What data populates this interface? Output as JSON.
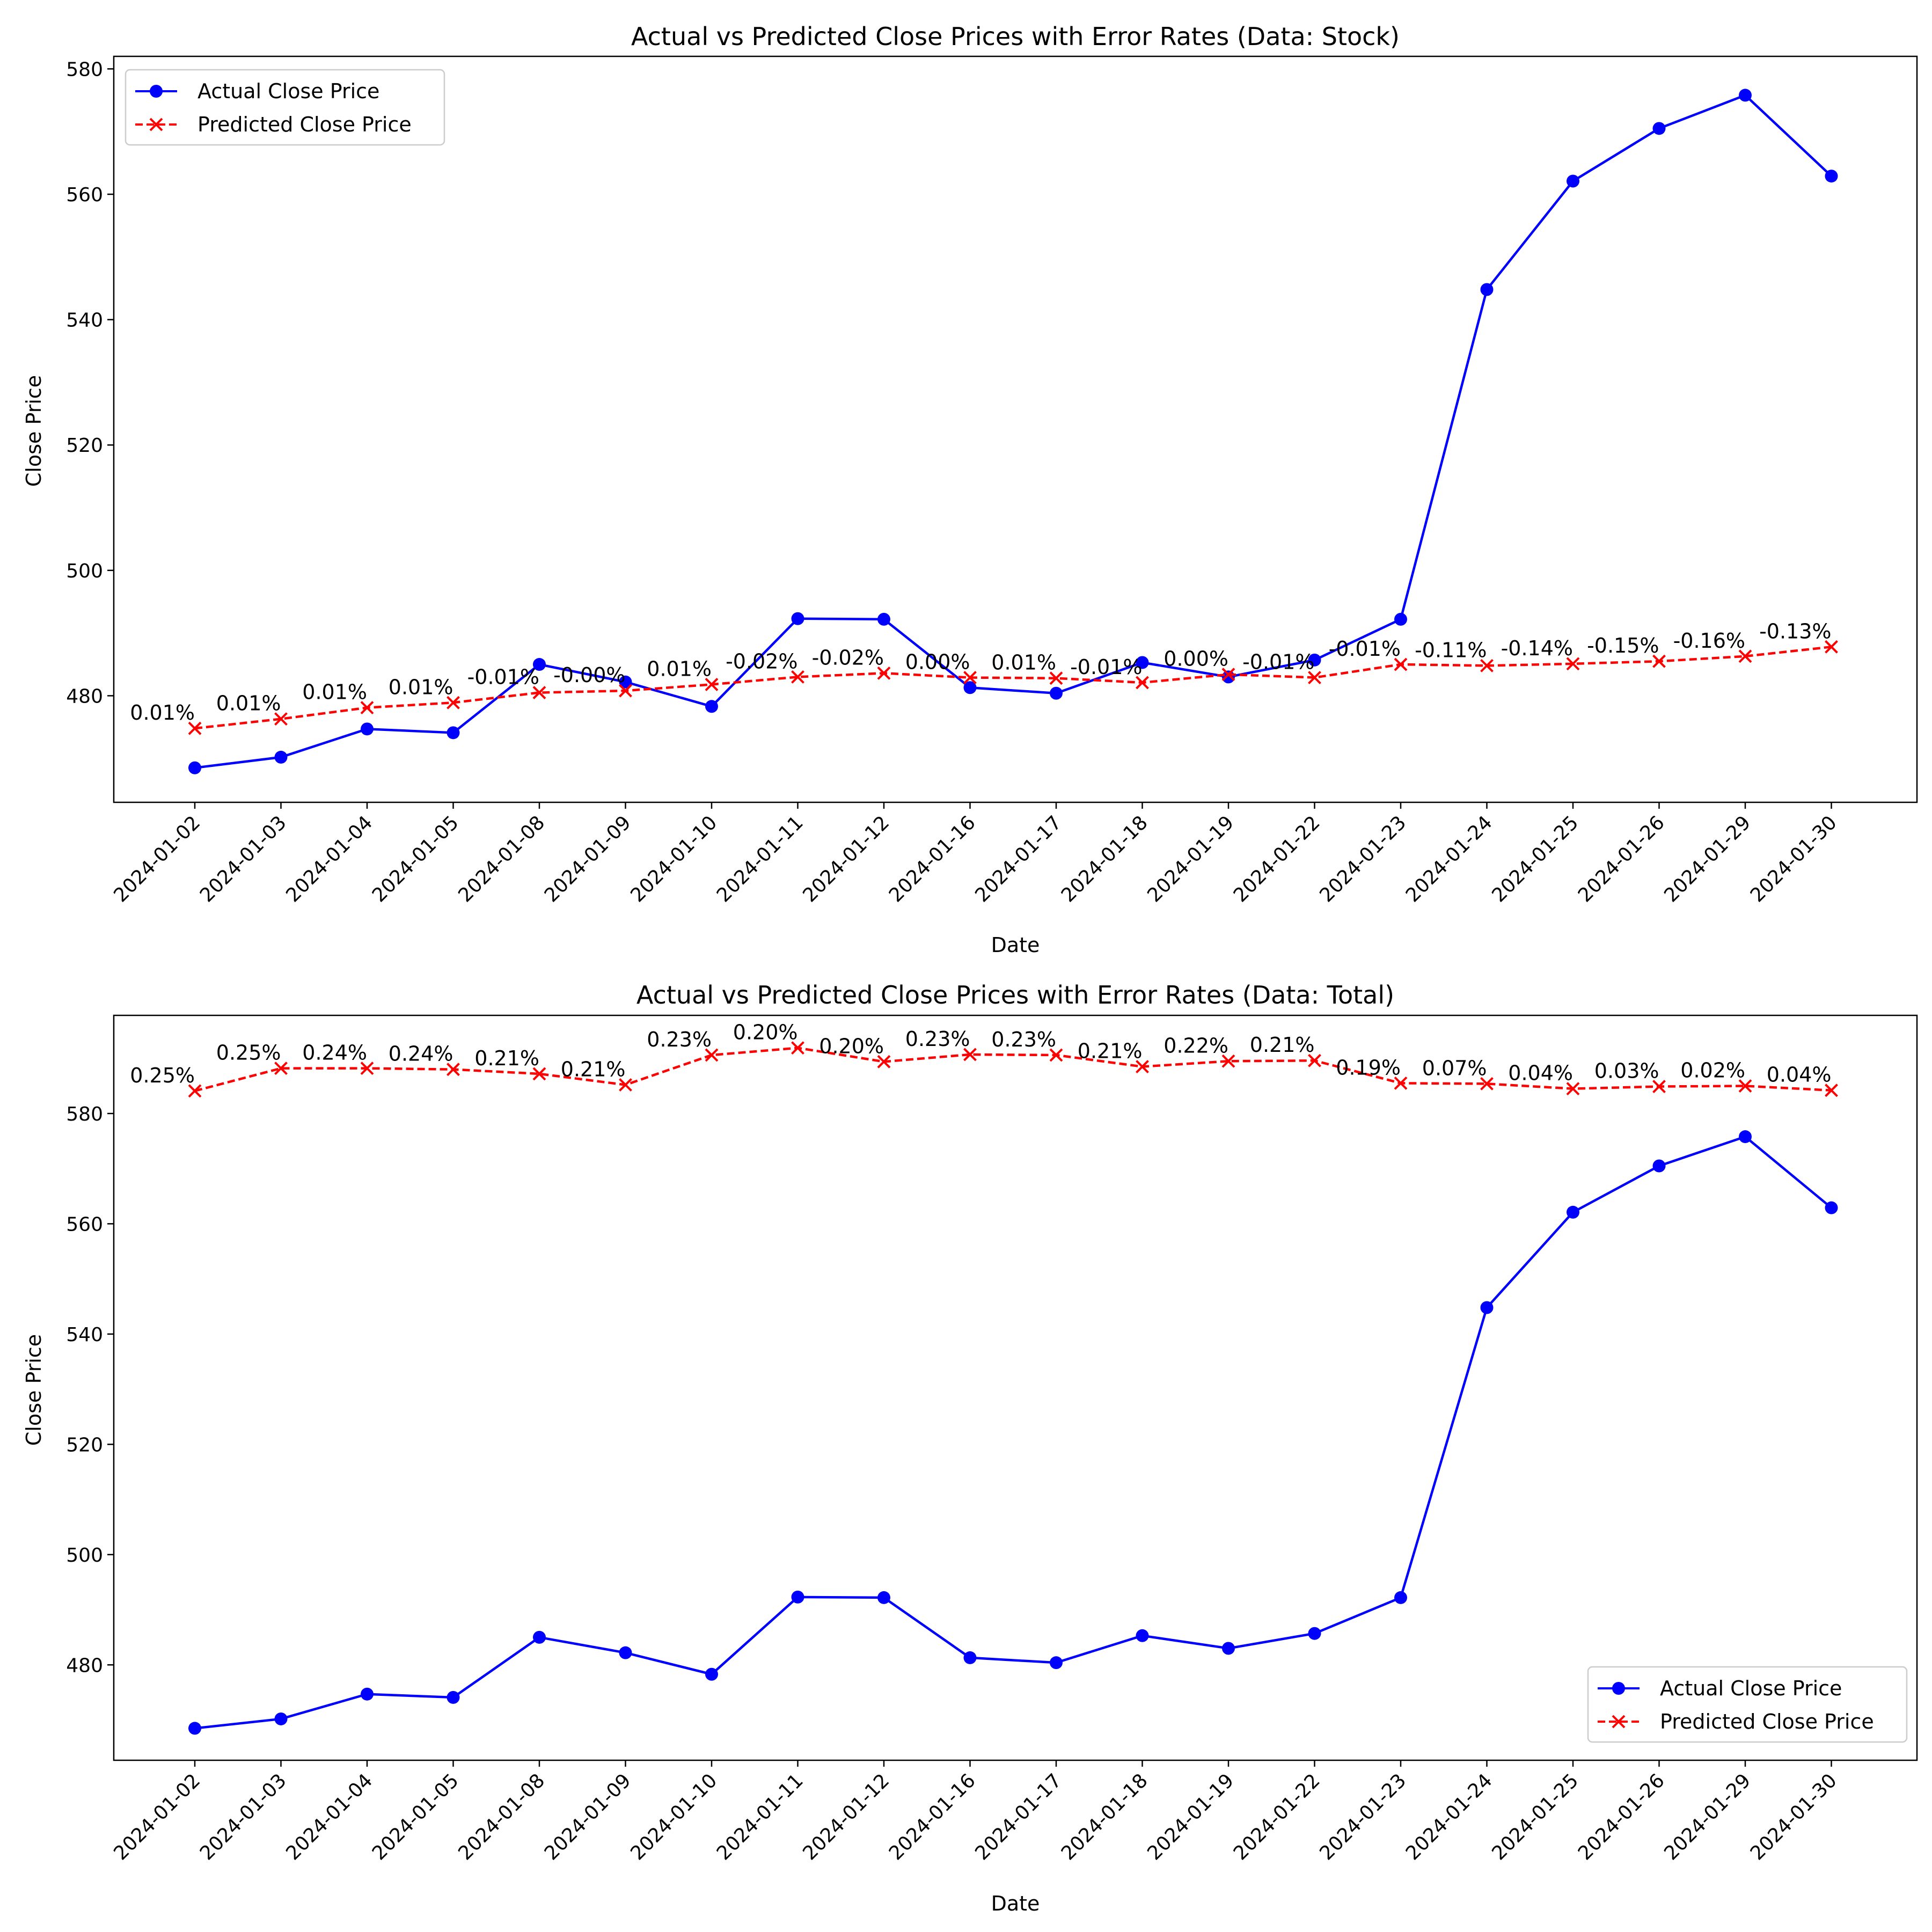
{
  "chart_data": [
    {
      "type": "line",
      "title": "Actual vs Predicted Close Prices with Error Rates (Data: Stock)",
      "xlabel": "Date",
      "ylabel": "Close Price",
      "categories": [
        "2024-01-02",
        "2024-01-03",
        "2024-01-04",
        "2024-01-05",
        "2024-01-08",
        "2024-01-09",
        "2024-01-10",
        "2024-01-11",
        "2024-01-12",
        "2024-01-16",
        "2024-01-17",
        "2024-01-18",
        "2024-01-19",
        "2024-01-22",
        "2024-01-23",
        "2024-01-24",
        "2024-01-25",
        "2024-01-26",
        "2024-01-29",
        "2024-01-30"
      ],
      "ylim": [
        463,
        582
      ],
      "yticks": [
        480,
        500,
        520,
        540,
        560,
        580
      ],
      "legend": "upper-left",
      "series": [
        {
          "name": "Actual Close Price",
          "color": "#0000ff",
          "marker": "circle",
          "linestyle": "solid",
          "values": [
            468.5,
            470.2,
            474.7,
            474.1,
            485.0,
            482.2,
            478.3,
            492.3,
            492.2,
            481.3,
            480.4,
            485.3,
            483.0,
            485.7,
            492.2,
            544.8,
            562.1,
            570.5,
            575.8,
            562.9
          ]
        },
        {
          "name": "Predicted Close Price",
          "color": "#ff0000",
          "marker": "x",
          "linestyle": "dashed",
          "values": [
            474.8,
            476.3,
            478.1,
            478.9,
            480.5,
            480.8,
            481.8,
            483.0,
            483.6,
            482.9,
            482.8,
            482.1,
            483.4,
            482.9,
            485.0,
            484.8,
            485.1,
            485.5,
            486.3,
            487.8
          ]
        }
      ],
      "annotations": [
        "0.01%",
        "0.01%",
        "0.01%",
        "0.01%",
        "-0.01%",
        "-0.00%",
        "0.01%",
        "-0.02%",
        "-0.02%",
        "0.00%",
        "0.01%",
        "-0.01%",
        "0.00%",
        "-0.01%",
        "-0.01%",
        "-0.11%",
        "-0.14%",
        "-0.15%",
        "-0.16%",
        "-0.13%"
      ]
    },
    {
      "type": "line",
      "title": "Actual vs Predicted Close Prices with Error Rates (Data: Total)",
      "xlabel": "Date",
      "ylabel": "Close Price",
      "categories": [
        "2024-01-02",
        "2024-01-03",
        "2024-01-04",
        "2024-01-05",
        "2024-01-08",
        "2024-01-09",
        "2024-01-10",
        "2024-01-11",
        "2024-01-12",
        "2024-01-16",
        "2024-01-17",
        "2024-01-18",
        "2024-01-19",
        "2024-01-22",
        "2024-01-23",
        "2024-01-24",
        "2024-01-25",
        "2024-01-26",
        "2024-01-29",
        "2024-01-30"
      ],
      "ylim": [
        462.7,
        597.8
      ],
      "yticks": [
        480,
        500,
        520,
        540,
        560,
        580
      ],
      "legend": "lower-right",
      "series": [
        {
          "name": "Actual Close Price",
          "color": "#0000ff",
          "marker": "circle",
          "linestyle": "solid",
          "values": [
            468.5,
            470.2,
            474.7,
            474.1,
            485.0,
            482.2,
            478.3,
            492.3,
            492.2,
            481.3,
            480.4,
            485.3,
            483.0,
            485.7,
            492.2,
            544.8,
            562.1,
            570.5,
            575.8,
            562.9
          ]
        },
        {
          "name": "Predicted Close Price",
          "color": "#ff0000",
          "marker": "x",
          "linestyle": "dashed",
          "values": [
            584.1,
            588.2,
            588.2,
            588.0,
            587.2,
            585.2,
            590.6,
            591.9,
            589.4,
            590.7,
            590.6,
            588.5,
            589.5,
            589.6,
            585.5,
            585.4,
            584.5,
            584.9,
            585.0,
            584.2
          ]
        }
      ],
      "annotations": [
        "0.25%",
        "0.25%",
        "0.24%",
        "0.24%",
        "0.21%",
        "0.21%",
        "0.23%",
        "0.20%",
        "0.20%",
        "0.23%",
        "0.23%",
        "0.21%",
        "0.22%",
        "0.21%",
        "0.19%",
        "0.07%",
        "0.04%",
        "0.03%",
        "0.02%",
        "0.04%"
      ]
    }
  ]
}
